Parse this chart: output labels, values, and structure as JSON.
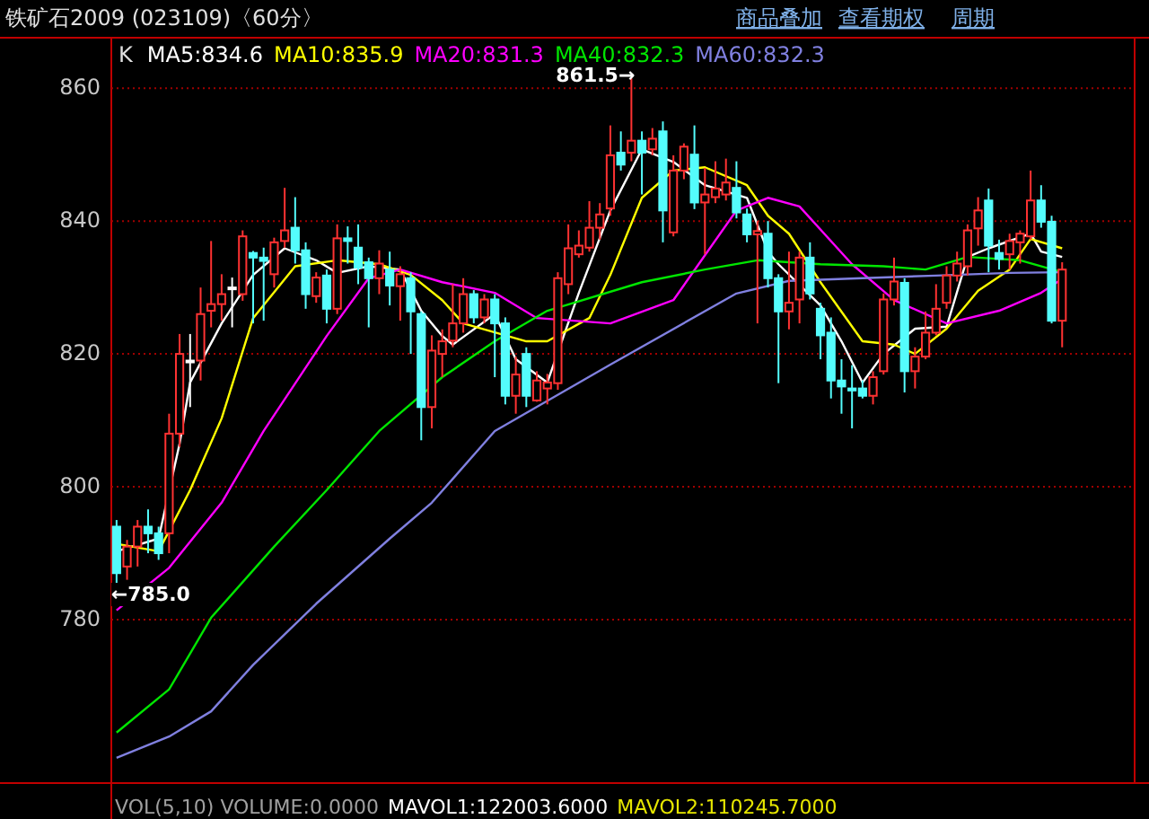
{
  "chart_data": {
    "type": "candlestick",
    "title": "铁矿石2009 (023109)〈60分〉",
    "categories": [
      null,
      null,
      null,
      null,
      null,
      null,
      null,
      null,
      null,
      null,
      null,
      null,
      null,
      null,
      null,
      null,
      null,
      null,
      null,
      null,
      null,
      null,
      null,
      null,
      null,
      null,
      null,
      null,
      null,
      null,
      null,
      null,
      null,
      null,
      null,
      null,
      null,
      null,
      null,
      null,
      null,
      null,
      null,
      null,
      null,
      null,
      null,
      null,
      null,
      null,
      null,
      null,
      null,
      null,
      null,
      null,
      null,
      null,
      null,
      null,
      null,
      null,
      null,
      null,
      null,
      null,
      null,
      null,
      null,
      null,
      null,
      null,
      null,
      null,
      null,
      null,
      null,
      null,
      null,
      null,
      null,
      null,
      null,
      null,
      null,
      null,
      null,
      null,
      null,
      null,
      null
    ],
    "ohlc": [
      [
        794,
        795,
        785,
        787
      ],
      [
        788,
        792,
        786,
        791
      ],
      [
        791,
        795,
        788,
        794
      ],
      [
        794,
        796.6,
        790,
        793
      ],
      [
        793,
        794,
        789,
        790
      ],
      [
        793,
        811,
        790,
        808
      ],
      [
        808,
        823,
        806,
        820
      ],
      [
        819,
        823,
        812,
        819
      ],
      [
        819,
        830,
        816,
        826
      ],
      [
        826.5,
        837,
        824,
        827.5
      ],
      [
        827.5,
        832,
        825,
        829
      ],
      [
        830,
        831.5,
        824,
        830
      ],
      [
        829,
        838.6,
        828,
        837.7
      ],
      [
        835.2,
        835.5,
        824.6,
        834.5
      ],
      [
        834.5,
        836,
        825,
        834
      ],
      [
        832,
        837.5,
        830,
        836.8
      ],
      [
        837,
        845,
        836,
        838.6
      ],
      [
        839,
        843.6,
        833.6,
        835.6
      ],
      [
        835.6,
        836.8,
        826.8,
        829
      ],
      [
        828.7,
        832.3,
        827.7,
        831.5
      ],
      [
        831.8,
        832.7,
        824.6,
        826.8
      ],
      [
        826.8,
        839.5,
        826,
        837.4
      ],
      [
        837.4,
        839.2,
        833.6,
        837
      ],
      [
        836,
        839.5,
        830.5,
        833
      ],
      [
        833.8,
        834.5,
        824,
        831.4
      ],
      [
        831.4,
        835.6,
        829,
        833.6
      ],
      [
        832.7,
        835.4,
        827.3,
        830.3
      ],
      [
        830.2,
        833.2,
        825,
        832
      ],
      [
        831.4,
        832.3,
        820,
        826.4
      ],
      [
        826,
        826.4,
        807,
        812
      ],
      [
        812,
        822.8,
        808.8,
        820.5
      ],
      [
        820,
        823.7,
        816.5,
        821.9
      ],
      [
        822,
        830.5,
        821,
        824.6
      ],
      [
        824.6,
        831.4,
        823.2,
        829
      ],
      [
        829,
        829.6,
        824.6,
        825.5
      ],
      [
        825.5,
        829,
        824.6,
        828.2
      ],
      [
        828.2,
        829,
        816.5,
        824.6
      ],
      [
        824.6,
        825.5,
        812.4,
        813.7
      ],
      [
        813.7,
        819.6,
        811,
        816.9
      ],
      [
        820,
        821,
        812,
        813.7
      ],
      [
        813,
        817.4,
        812.8,
        816
      ],
      [
        814.8,
        817,
        812.4,
        815.7
      ],
      [
        815.6,
        832.3,
        814.6,
        831.4
      ],
      [
        830.5,
        839.5,
        829,
        835.9
      ],
      [
        835,
        838.6,
        834.5,
        836.3
      ],
      [
        836,
        843,
        835.4,
        839
      ],
      [
        839,
        842.7,
        837.2,
        841
      ],
      [
        841.9,
        854.4,
        840.8,
        849.9
      ],
      [
        850.3,
        853.5,
        847.6,
        848.5
      ],
      [
        850.3,
        861.5,
        849,
        852.1
      ],
      [
        852.1,
        853.5,
        844,
        850.3
      ],
      [
        850.8,
        854,
        849.9,
        852.4
      ],
      [
        853.5,
        855,
        836.8,
        841.6
      ],
      [
        838.3,
        849.9,
        837.7,
        847.6
      ],
      [
        847.6,
        851.7,
        846.3,
        851.2
      ],
      [
        850,
        854.4,
        841.8,
        842.8
      ],
      [
        842.8,
        848,
        835,
        844
      ],
      [
        843.6,
        849,
        842.7,
        844.9
      ],
      [
        844,
        849.4,
        843.1,
        845.8
      ],
      [
        845,
        849,
        840.4,
        841.3
      ],
      [
        841,
        841.9,
        836.8,
        838
      ],
      [
        838,
        840,
        824.6,
        838.5
      ],
      [
        838.1,
        840,
        830,
        831.4
      ],
      [
        831.4,
        832,
        815.6,
        826.4
      ],
      [
        826.4,
        835.4,
        823.7,
        827.7
      ],
      [
        828.2,
        835.4,
        824.6,
        834.5
      ],
      [
        834.5,
        836.8,
        828.2,
        829.1
      ],
      [
        826.8,
        827.7,
        819.2,
        822.8
      ],
      [
        823.2,
        825.5,
        813.3,
        816
      ],
      [
        816,
        819.2,
        811,
        815.1
      ],
      [
        814.8,
        818.3,
        808.8,
        814.5
      ],
      [
        814.8,
        816,
        813.3,
        813.7
      ],
      [
        813.7,
        817.4,
        812.4,
        816.5
      ],
      [
        817.4,
        829.1,
        816.9,
        828.2
      ],
      [
        828.2,
        834.5,
        827.3,
        830.9
      ],
      [
        830.7,
        831.4,
        814.2,
        817.4
      ],
      [
        817.4,
        821,
        814.8,
        819.6
      ],
      [
        819.6,
        826.4,
        819.2,
        823.2
      ],
      [
        823.2,
        830.5,
        822.8,
        826.8
      ],
      [
        827.7,
        833.2,
        826.8,
        831.8
      ],
      [
        831.8,
        835.4,
        830.9,
        833.6
      ],
      [
        833.2,
        839.5,
        831.8,
        838.6
      ],
      [
        838.9,
        843.6,
        836.3,
        841.6
      ],
      [
        843.1,
        844.9,
        832.3,
        836.3
      ],
      [
        835.2,
        837.2,
        832.7,
        834.3
      ],
      [
        835,
        838.1,
        832.7,
        837
      ],
      [
        836.8,
        838.6,
        833.6,
        838.1
      ],
      [
        837.7,
        847.6,
        837.2,
        843.1
      ],
      [
        843.1,
        845.4,
        839,
        839.9
      ],
      [
        839.9,
        840.8,
        824.6,
        825
      ],
      [
        825,
        833.8,
        821,
        832.7
      ]
    ],
    "colors": [
      "#54fcfc",
      "#ff3232",
      "#ff3232",
      "#54fcfc",
      "#54fcfc",
      "#ff3232",
      "#ff3232",
      "#ffffff",
      "#ff3232",
      "#ff3232",
      "#ff3232",
      "#ffffff",
      "#ff3232",
      "#54fcfc",
      "#54fcfc",
      "#ff3232",
      "#ff3232",
      "#54fcfc",
      "#54fcfc",
      "#ff3232",
      "#54fcfc",
      "#ff3232",
      "#54fcfc",
      "#54fcfc",
      "#54fcfc",
      "#ff3232",
      "#54fcfc",
      "#ff3232",
      "#54fcfc",
      "#54fcfc",
      "#ff3232",
      "#ff3232",
      "#ff3232",
      "#ff3232",
      "#54fcfc",
      "#ff3232",
      "#54fcfc",
      "#54fcfc",
      "#ff3232",
      "#54fcfc",
      "#ff3232",
      "#ff3232",
      "#ff3232",
      "#ff3232",
      "#ff3232",
      "#ff3232",
      "#ff3232",
      "#ff3232",
      "#54fcfc",
      "#ff3232",
      "#54fcfc",
      "#ff3232",
      "#54fcfc",
      "#ff3232",
      "#ff3232",
      "#54fcfc",
      "#ff3232",
      "#ff3232",
      "#ff3232",
      "#54fcfc",
      "#54fcfc",
      "#ff3232",
      "#54fcfc",
      "#54fcfc",
      "#ff3232",
      "#ff3232",
      "#54fcfc",
      "#54fcfc",
      "#54fcfc",
      "#54fcfc",
      "#54fcfc",
      "#54fcfc",
      "#ff3232",
      "#ff3232",
      "#ff3232",
      "#54fcfc",
      "#ff3232",
      "#ff3232",
      "#ff3232",
      "#ff3232",
      "#ff3232",
      "#ff3232",
      "#ff3232",
      "#54fcfc",
      "#54fcfc",
      "#ff3232",
      "#ff3232",
      "#ff3232",
      "#54fcfc",
      "#54fcfc",
      "#ff3232"
    ],
    "series": [
      {
        "name": "MA5:834.6",
        "type": "line",
        "color": "#ffffff",
        "values": [
          790.3,
          null,
          null,
          null,
          792.2,
          null,
          806.5,
          815.7,
          null,
          null,
          824.6,
          null,
          null,
          831.9,
          null,
          null,
          835.9,
          null,
          null,
          834.1,
          null,
          832.2,
          null,
          null,
          833.2,
          null,
          null,
          832.7,
          null,
          826.5,
          null,
          822.7,
          821.4,
          null,
          null,
          null,
          826,
          null,
          819.2,
          null,
          null,
          815.7,
          null,
          null,
          829.2,
          null,
          null,
          841.6,
          null,
          null,
          850.8,
          null,
          null,
          848.9,
          null,
          null,
          845.4,
          null,
          null,
          null,
          843.5,
          null,
          835.4,
          833.5,
          null,
          null,
          null,
          827.3,
          null,
          821.9,
          null,
          815.7,
          null,
          820,
          null,
          null,
          823.8,
          null,
          null,
          824.1,
          null,
          834.6,
          null,
          835.9,
          null,
          null,
          null,
          838.1,
          835.4,
          null,
          834.6
        ]
      },
      {
        "name": "MA10:835.9",
        "type": "line",
        "color": "#ffff00",
        "values": [
          791.4,
          null,
          null,
          null,
          790.3,
          null,
          null,
          799.5,
          null,
          null,
          810.3,
          null,
          null,
          825.4,
          null,
          null,
          null,
          833.2,
          null,
          null,
          null,
          834.1,
          null,
          null,
          null,
          833.5,
          null,
          null,
          831.9,
          null,
          null,
          828.1,
          null,
          824.6,
          null,
          null,
          null,
          null,
          null,
          821.9,
          null,
          821.9,
          null,
          null,
          null,
          825.4,
          null,
          831.9,
          null,
          null,
          843.5,
          null,
          null,
          847.6,
          null,
          null,
          848.1,
          null,
          null,
          null,
          845.4,
          null,
          840.8,
          null,
          838.1,
          null,
          null,
          830.8,
          null,
          null,
          null,
          821.9,
          null,
          null,
          821.4,
          null,
          820,
          null,
          null,
          823.8,
          null,
          null,
          829.5,
          null,
          null,
          832.7,
          null,
          837.3,
          null,
          null,
          835.9
        ]
      },
      {
        "name": "MA20:831.3",
        "type": "line",
        "color": "#ff00ff",
        "values": [
          781.4,
          null,
          null,
          null,
          null,
          787.8,
          null,
          null,
          null,
          null,
          797.6,
          null,
          null,
          null,
          808.4,
          null,
          null,
          null,
          null,
          null,
          822.7,
          null,
          null,
          null,
          831.4,
          null,
          null,
          832.7,
          null,
          null,
          null,
          830.8,
          null,
          null,
          null,
          null,
          829.2,
          null,
          null,
          null,
          825.4,
          null,
          null,
          null,
          null,
          null,
          null,
          824.6,
          null,
          null,
          null,
          null,
          null,
          828.1,
          null,
          null,
          null,
          null,
          null,
          841.6,
          null,
          null,
          843.5,
          null,
          null,
          842.2,
          null,
          null,
          null,
          null,
          833.5,
          null,
          null,
          null,
          828.1,
          null,
          null,
          null,
          null,
          824.6,
          null,
          null,
          null,
          null,
          826.5,
          null,
          null,
          null,
          829.2,
          null,
          831.3
        ]
      },
      {
        "name": "MA40:832.3",
        "type": "line",
        "color": "#00e600",
        "values": [
          763,
          null,
          null,
          null,
          null,
          769.5,
          null,
          null,
          null,
          780.3,
          null,
          null,
          null,
          null,
          null,
          791,
          null,
          null,
          null,
          null,
          799.5,
          null,
          null,
          null,
          null,
          808.4,
          null,
          null,
          null,
          null,
          null,
          816.5,
          null,
          null,
          null,
          null,
          821.9,
          null,
          null,
          null,
          null,
          826.5,
          null,
          null,
          null,
          null,
          null,
          null,
          null,
          null,
          830.8,
          null,
          null,
          null,
          null,
          null,
          832.7,
          null,
          null,
          null,
          null,
          834.1,
          null,
          null,
          null,
          null,
          null,
          833.5,
          null,
          null,
          null,
          null,
          null,
          833.2,
          null,
          null,
          null,
          832.7,
          null,
          null,
          null,
          834.6,
          null,
          null,
          null,
          null,
          834.1,
          null,
          null,
          null,
          832.3
        ]
      },
      {
        "name": "MA60:832.3",
        "type": "line",
        "color": "#8080e0",
        "values": [
          759.2,
          null,
          null,
          null,
          null,
          762.4,
          null,
          null,
          null,
          766.2,
          null,
          null,
          null,
          773.2,
          null,
          null,
          null,
          null,
          null,
          782.4,
          null,
          null,
          null,
          null,
          null,
          null,
          792.2,
          null,
          null,
          null,
          797.6,
          null,
          null,
          null,
          null,
          null,
          808.4,
          null,
          null,
          null,
          null,
          null,
          null,
          null,
          null,
          null,
          null,
          818.4,
          null,
          null,
          null,
          null,
          null,
          null,
          null,
          null,
          null,
          null,
          null,
          829.1,
          null,
          null,
          null,
          null,
          831,
          null,
          null,
          null,
          null,
          null,
          null,
          831.4,
          null,
          null,
          null,
          null,
          null,
          null,
          831.8,
          null,
          null,
          null,
          null,
          null,
          null,
          832.2,
          null,
          null,
          null,
          null,
          832.3
        ]
      }
    ],
    "ylim": [
      755.4,
      867.6
    ],
    "yticks": [
      780,
      800,
      820,
      840,
      860
    ],
    "grid": "y",
    "tick_labels": "y",
    "legend": "top left",
    "annotations": [
      "861.5→",
      "←785.0",
      "K",
      "商品叠加",
      "查看期权",
      "周期",
      "VOL(5,10) VOLUME:0.0000",
      "MAVOL1:122003.6000",
      "MAVOL2:110245.7000"
    ]
  }
}
